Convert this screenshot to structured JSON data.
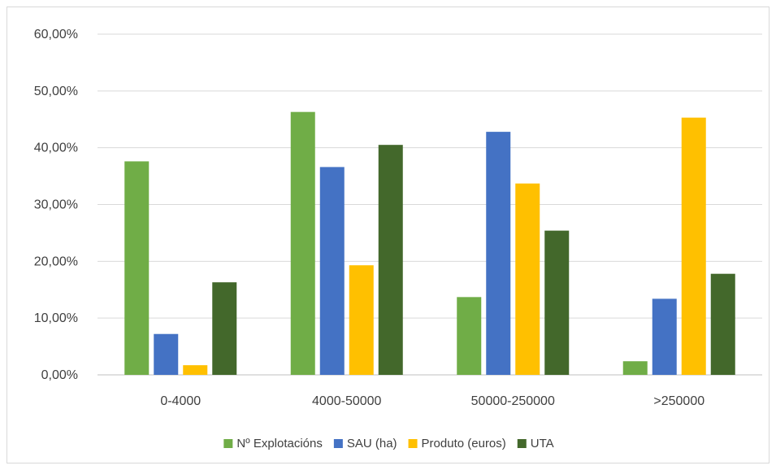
{
  "chart_data": {
    "type": "bar",
    "title": "",
    "xlabel": "",
    "ylabel": "",
    "categories": [
      "0-4000",
      "4000-50000",
      "50000-250000",
      ">250000"
    ],
    "ylim": [
      0,
      60
    ],
    "yticks": [
      0,
      10,
      20,
      30,
      40,
      50,
      60
    ],
    "ytick_labels": [
      "0,00%",
      "10,00%",
      "20,00%",
      "30,00%",
      "40,00%",
      "50,00%",
      "60,00%"
    ],
    "grid": true,
    "legend_position": "bottom",
    "series": [
      {
        "name": "Nº Explotacións",
        "color": "#70ad47",
        "values": [
          37.6,
          46.3,
          13.7,
          2.4
        ]
      },
      {
        "name": "SAU (ha)",
        "color": "#4472c4",
        "values": [
          7.2,
          36.6,
          42.8,
          13.4
        ]
      },
      {
        "name": "Produto (euros)",
        "color": "#ffc000",
        "values": [
          1.7,
          19.3,
          33.7,
          45.3
        ]
      },
      {
        "name": "UTA",
        "color": "#43682b",
        "values": [
          16.3,
          40.5,
          25.4,
          17.8
        ]
      }
    ]
  }
}
